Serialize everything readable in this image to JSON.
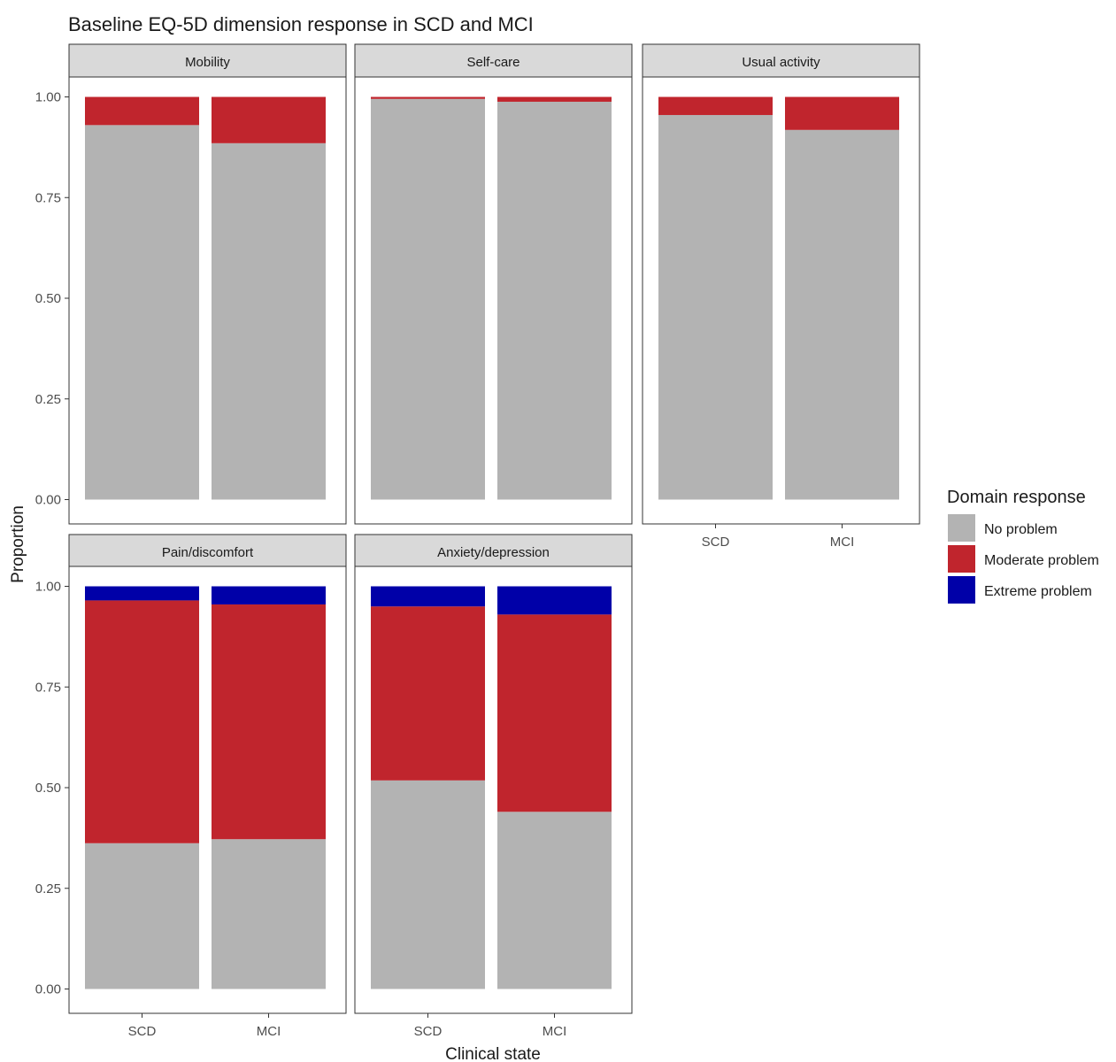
{
  "chart_data": {
    "type": "bar",
    "stacked": true,
    "title": "Baseline EQ-5D dimension response in SCD and MCI",
    "xlabel": "Clinical state",
    "ylabel": "Proportion",
    "ylim": [
      0,
      1
    ],
    "yticks": [
      "0.00",
      "0.25",
      "0.50",
      "0.75",
      "1.00"
    ],
    "categories": [
      "SCD",
      "MCI"
    ],
    "grid": false,
    "legend": {
      "title": "Domain response",
      "placement": "right",
      "entries": [
        {
          "name": "No problem",
          "color": "#b3b3b3"
        },
        {
          "name": "Moderate problem",
          "color": "#c0252d"
        },
        {
          "name": "Extreme problem",
          "color": "#0000a8"
        }
      ]
    },
    "panels": [
      {
        "name": "Mobility",
        "series": [
          {
            "name": "No problem",
            "values": [
              0.93,
              0.885
            ]
          },
          {
            "name": "Moderate problem",
            "values": [
              0.07,
              0.115
            ]
          },
          {
            "name": "Extreme problem",
            "values": [
              0,
              0
            ]
          }
        ]
      },
      {
        "name": "Self-care",
        "series": [
          {
            "name": "No problem",
            "values": [
              0.995,
              0.988
            ]
          },
          {
            "name": "Moderate problem",
            "values": [
              0.005,
              0.012
            ]
          },
          {
            "name": "Extreme problem",
            "values": [
              0,
              0
            ]
          }
        ]
      },
      {
        "name": "Usual activity",
        "series": [
          {
            "name": "No problem",
            "values": [
              0.955,
              0.918
            ]
          },
          {
            "name": "Moderate problem",
            "values": [
              0.045,
              0.082
            ]
          },
          {
            "name": "Extreme problem",
            "values": [
              0,
              0
            ]
          }
        ]
      },
      {
        "name": "Pain/discomfort",
        "series": [
          {
            "name": "No problem",
            "values": [
              0.362,
              0.372
            ]
          },
          {
            "name": "Moderate problem",
            "values": [
              0.603,
              0.583
            ]
          },
          {
            "name": "Extreme problem",
            "values": [
              0.035,
              0.045
            ]
          }
        ]
      },
      {
        "name": "Anxiety/depression",
        "series": [
          {
            "name": "No problem",
            "values": [
              0.518,
              0.44
            ]
          },
          {
            "name": "Moderate problem",
            "values": [
              0.432,
              0.49
            ]
          },
          {
            "name": "Extreme problem",
            "values": [
              0.05,
              0.07
            ]
          }
        ]
      }
    ]
  }
}
